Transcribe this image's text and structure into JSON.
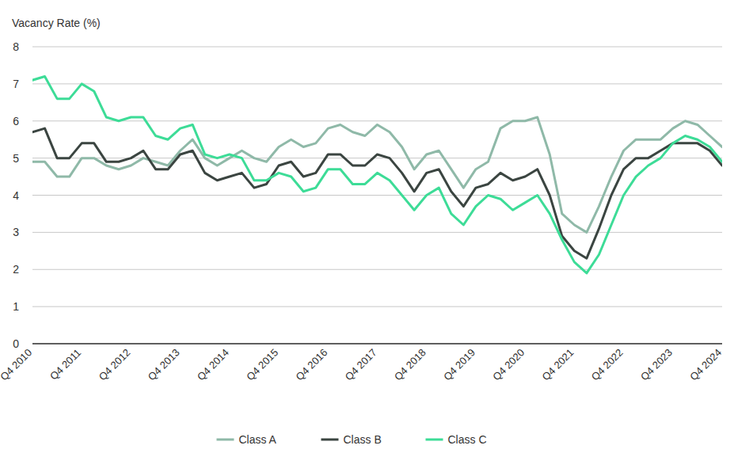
{
  "chart_data": {
    "type": "line",
    "y_label": "Vacancy Rate (%)",
    "categories": [
      "Q4 2010",
      null,
      null,
      null,
      "Q4 2011",
      null,
      null,
      null,
      "Q4 2012",
      null,
      null,
      null,
      "Q4 2013",
      null,
      null,
      null,
      "Q4 2014",
      null,
      null,
      null,
      "Q4 2015",
      null,
      null,
      null,
      "Q4 2016",
      null,
      null,
      null,
      "Q4 2017",
      null,
      null,
      null,
      "Q4 2018",
      null,
      null,
      null,
      "Q4 2019",
      null,
      null,
      null,
      "Q4 2020",
      null,
      null,
      null,
      "Q4 2021",
      null,
      null,
      null,
      "Q4 2022",
      null,
      null,
      null,
      "Q4 2023",
      null,
      null,
      null,
      "Q4 2024"
    ],
    "series": [
      {
        "name": "Class A",
        "color": "#8fb9a8",
        "values": [
          4.9,
          4.9,
          4.5,
          4.5,
          5.0,
          5.0,
          4.8,
          4.7,
          4.8,
          5.0,
          4.9,
          4.8,
          5.2,
          5.5,
          5.0,
          4.8,
          5.0,
          5.2,
          5.0,
          4.9,
          5.3,
          5.5,
          5.3,
          5.4,
          5.8,
          5.9,
          5.7,
          5.6,
          5.9,
          5.7,
          5.3,
          4.7,
          5.1,
          5.2,
          4.7,
          4.2,
          4.7,
          4.9,
          5.8,
          6.0,
          6.0,
          6.1,
          5.1,
          3.5,
          3.2,
          3.0,
          3.7,
          4.5,
          5.2,
          5.5,
          5.5,
          5.5,
          5.8,
          6.0,
          5.9,
          5.6,
          5.3
        ]
      },
      {
        "name": "Class B",
        "color": "#3b4541",
        "values": [
          5.7,
          5.8,
          5.0,
          5.0,
          5.4,
          5.4,
          4.9,
          4.9,
          5.0,
          5.2,
          4.7,
          4.7,
          5.1,
          5.2,
          4.6,
          4.4,
          4.5,
          4.6,
          4.2,
          4.3,
          4.8,
          4.9,
          4.5,
          4.6,
          5.1,
          5.1,
          4.8,
          4.8,
          5.1,
          5.0,
          4.6,
          4.1,
          4.6,
          4.7,
          4.1,
          3.7,
          4.2,
          4.3,
          4.6,
          4.4,
          4.5,
          4.7,
          4.0,
          2.9,
          2.5,
          2.3,
          3.1,
          4.0,
          4.7,
          5.0,
          5.0,
          5.2,
          5.4,
          5.4,
          5.4,
          5.2,
          4.8
        ]
      },
      {
        "name": "Class C",
        "color": "#3ddc97",
        "values": [
          7.1,
          7.2,
          6.6,
          6.6,
          7.0,
          6.8,
          6.1,
          6.0,
          6.1,
          6.1,
          5.6,
          5.5,
          5.8,
          5.9,
          5.1,
          5.0,
          5.1,
          5.0,
          4.4,
          4.4,
          4.6,
          4.5,
          4.1,
          4.2,
          4.7,
          4.7,
          4.3,
          4.3,
          4.6,
          4.4,
          4.0,
          3.6,
          4.0,
          4.2,
          3.5,
          3.2,
          3.7,
          4.0,
          3.9,
          3.6,
          3.8,
          4.0,
          3.5,
          2.8,
          2.2,
          1.9,
          2.4,
          3.2,
          4.0,
          4.5,
          4.8,
          5.0,
          5.4,
          5.6,
          5.5,
          5.3,
          4.9
        ]
      }
    ],
    "ylim": [
      0,
      8
    ],
    "yticks": [
      0,
      1,
      2,
      3,
      4,
      5,
      6,
      7,
      8
    ],
    "grid": true,
    "legend": "bottom"
  }
}
